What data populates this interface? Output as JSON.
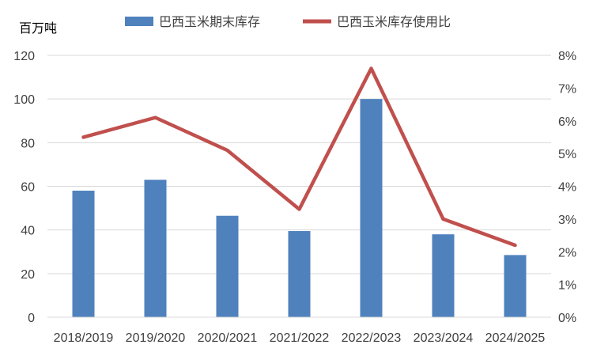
{
  "chart_data": {
    "type": "bar",
    "categories": [
      "2018/2019",
      "2019/2020",
      "2020/2021",
      "2021/2022",
      "2022/2023",
      "2023/2024",
      "2024/2025"
    ],
    "series": [
      {
        "name": "巴西玉米期末库存",
        "type": "bar",
        "axis": "left",
        "values": [
          58,
          63,
          46.5,
          39.5,
          100,
          38,
          28.5
        ],
        "color": "#4F81BD"
      },
      {
        "name": "巴西玉米库存使用比",
        "type": "line",
        "axis": "right",
        "values": [
          5.5,
          6.1,
          5.1,
          3.3,
          7.6,
          3.0,
          2.2
        ],
        "color": "#C0504D"
      }
    ],
    "y_left": {
      "unit_label": "百万吨",
      "ylim": [
        0,
        120
      ],
      "ticks": [
        "0",
        "20",
        "40",
        "60",
        "80",
        "100",
        "120"
      ]
    },
    "y_right": {
      "ylim": [
        0,
        8
      ],
      "ticks": [
        "0%",
        "1%",
        "2%",
        "3%",
        "4%",
        "5%",
        "6%",
        "7%",
        "8%"
      ]
    },
    "grid": true,
    "legend_position": "top"
  }
}
